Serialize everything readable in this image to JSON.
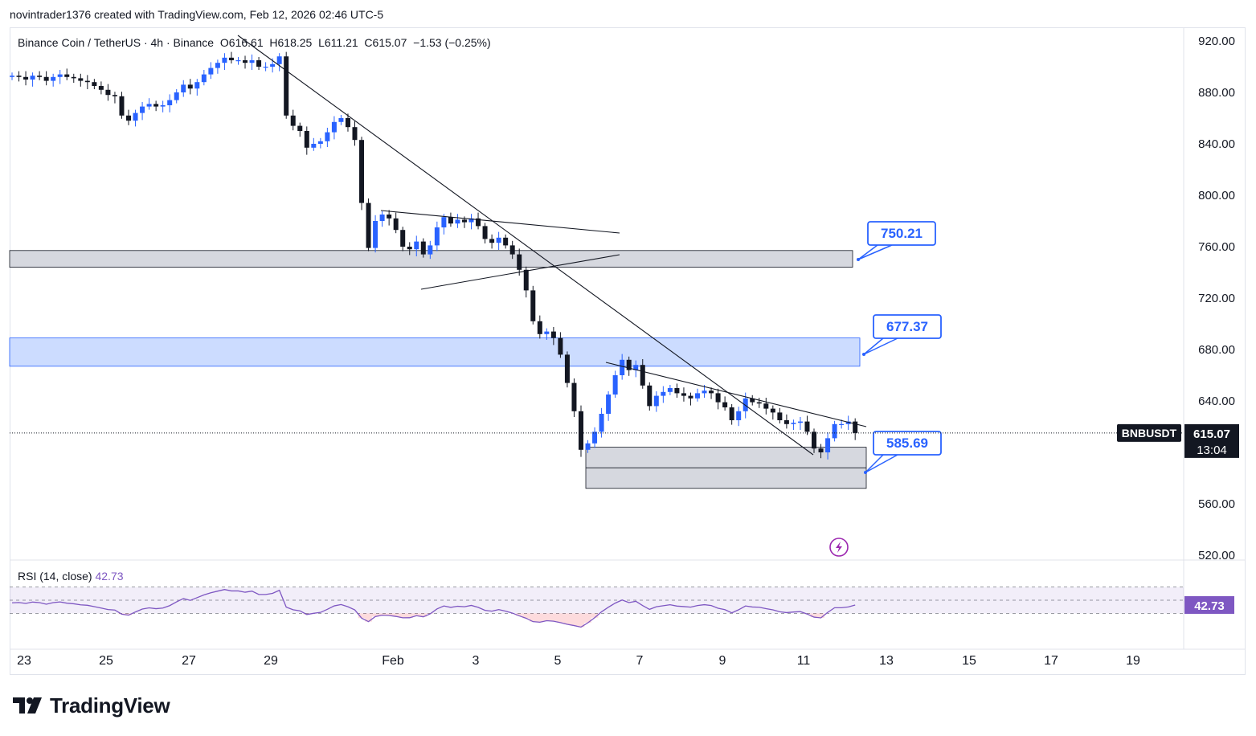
{
  "credit": "novintrader1376 created with TradingView.com, Feb 12, 2026 02:46 UTC-5",
  "legend": {
    "symbol": "Binance Coin / TetherUS · 4h · Binance",
    "ohlc": "O616.61  H618.25  L611.21  C615.07  −1.53 (−0.25%)"
  },
  "rsi_legend": {
    "label": "RSI (14, close)",
    "value": "42.73"
  },
  "ticker_badge": "BNBUSDT",
  "price_badge": {
    "price": "615.07",
    "countdown": "13:04"
  },
  "rsi_badge": "42.73",
  "brand": "TradingView",
  "colors": {
    "up": "#2962ff",
    "down": "#131722",
    "rsi": "#7e57c2",
    "zone_blue": "#bbd0ff",
    "zone_gray": "#d1d4dc"
  },
  "chart_data": [
    {
      "type": "candlestick",
      "symbol": "BNBUSDT",
      "timeframe": "4h",
      "ylim": [
        500,
        935
      ],
      "y_ticks": [
        "920.00",
        "880.00",
        "840.00",
        "800.00",
        "760.00",
        "720.00",
        "680.00",
        "640.00",
        "600.00",
        "560.00",
        "520.00"
      ],
      "x_ticks": [
        "23",
        "25",
        "27",
        "29",
        "Feb",
        "3",
        "5",
        "7",
        "9",
        "11",
        "13",
        "15",
        "17",
        "19"
      ],
      "last_price": 615.07,
      "zones": [
        {
          "kind": "gray",
          "y1": 744,
          "y2": 757
        },
        {
          "kind": "blue",
          "y1": 667,
          "y2": 689
        },
        {
          "kind": "gray",
          "y1": 572,
          "y2": 604
        }
      ],
      "callouts": [
        "750.21",
        "677.37",
        "585.69"
      ],
      "closes": [
        893,
        892,
        890,
        893,
        892,
        889,
        892,
        894,
        892,
        891,
        889,
        888,
        885,
        882,
        878,
        877,
        862,
        858,
        864,
        869,
        871,
        869,
        870,
        874,
        880,
        886,
        883,
        888,
        894,
        899,
        903,
        907,
        905,
        905,
        903,
        905,
        900,
        900,
        902,
        908,
        862,
        854,
        850,
        837,
        840,
        842,
        849,
        857,
        860,
        853,
        843,
        794,
        759,
        780,
        785,
        782,
        773,
        760,
        758,
        764,
        754,
        761,
        775,
        783,
        778,
        781,
        779,
        782,
        776,
        766,
        763,
        767,
        761,
        754,
        742,
        726,
        702,
        692,
        694,
        689,
        676,
        654,
        632,
        602,
        607,
        616,
        630,
        645,
        660,
        672,
        664,
        668,
        652,
        636,
        644,
        647,
        650,
        646,
        644,
        642,
        646,
        648,
        646,
        639,
        635,
        625,
        632,
        642,
        639,
        638,
        634,
        631,
        625,
        622,
        623,
        624,
        616,
        603,
        600,
        611,
        622,
        622,
        624,
        615.07
      ]
    },
    {
      "type": "line",
      "name": "RSI (14, close)",
      "ylim": [
        0,
        100
      ],
      "bands": [
        30,
        50,
        70
      ],
      "last": 42.73,
      "values": [
        46,
        46.5,
        45.1,
        47.2,
        46.3,
        43.9,
        46.3,
        47.4,
        45.5,
        44.6,
        43,
        42.3,
        40.2,
        38.1,
        35.8,
        35.1,
        28.8,
        27.3,
        32.2,
        36.6,
        38.4,
        37.1,
        38.1,
        41.8,
        47.5,
        52.5,
        49.7,
        53.9,
        58.1,
        61.3,
        63.8,
        66.2,
        64.1,
        64.1,
        62.1,
        63.8,
        58.7,
        58.7,
        60.4,
        65.1,
        39.5,
        35.5,
        33.9,
        28.3,
        30.1,
        31.5,
        36.2,
        41.4,
        43.4,
        40.1,
        35.3,
        22.8,
        17.5,
        25.2,
        27.3,
        26.8,
        25.4,
        23.3,
        23.4,
        26.5,
        24.8,
        29.3,
        36.8,
        41.3,
        39.1,
        40.8,
        40.1,
        42.1,
        39.2,
        34.6,
        33.4,
        35.8,
        33.4,
        30.4,
        26.3,
        22.6,
        17.5,
        16.6,
        18.9,
        18.1,
        16,
        13.4,
        11.5,
        9.2,
        15.7,
        23.5,
        32.4,
        39.4,
        45.6,
        50.3,
        46.4,
        48.4,
        41.9,
        36.1,
        40.1,
        41.6,
        43.1,
        41.1,
        40.3,
        39.5,
        41.9,
        43.2,
        41.9,
        37.8,
        35.7,
        30.8,
        35.5,
        41.3,
        39.7,
        39.3,
        37.2,
        35.4,
        32.5,
        31.2,
        32.1,
        32.7,
        29,
        24.3,
        23.2,
        31.6,
        38.6,
        38.6,
        39.8,
        42.73
      ]
    }
  ]
}
